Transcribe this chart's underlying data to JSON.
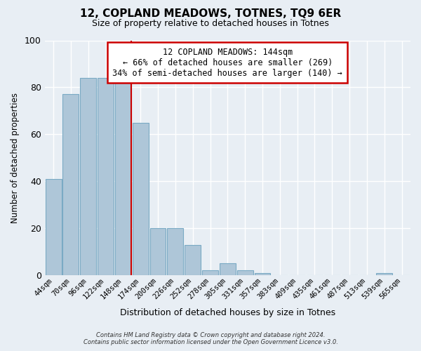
{
  "title": "12, COPLAND MEADOWS, TOTNES, TQ9 6ER",
  "subtitle": "Size of property relative to detached houses in Totnes",
  "xlabel": "Distribution of detached houses by size in Totnes",
  "ylabel": "Number of detached properties",
  "bar_labels": [
    "44sqm",
    "70sqm",
    "96sqm",
    "122sqm",
    "148sqm",
    "174sqm",
    "200sqm",
    "226sqm",
    "252sqm",
    "278sqm",
    "305sqm",
    "331sqm",
    "357sqm",
    "383sqm",
    "409sqm",
    "435sqm",
    "461sqm",
    "487sqm",
    "513sqm",
    "539sqm",
    "565sqm"
  ],
  "bar_values": [
    41,
    77,
    84,
    84,
    84,
    65,
    20,
    20,
    13,
    2,
    5,
    2,
    1,
    0,
    0,
    0,
    0,
    0,
    0,
    1,
    0
  ],
  "bar_color": "#aec6d8",
  "bar_edge_color": "#7aaac4",
  "vline_index": 4,
  "vline_color": "#cc0000",
  "annotation_title": "12 COPLAND MEADOWS: 144sqm",
  "annotation_line1": "← 66% of detached houses are smaller (269)",
  "annotation_line2": "34% of semi-detached houses are larger (140) →",
  "annotation_box_color": "#ffffff",
  "annotation_box_edge": "#cc0000",
  "ylim": [
    0,
    100
  ],
  "yticks": [
    0,
    20,
    40,
    60,
    80,
    100
  ],
  "background_color": "#e8eef4",
  "grid_color": "#ffffff",
  "footer_line1": "Contains HM Land Registry data © Crown copyright and database right 2024.",
  "footer_line2": "Contains public sector information licensed under the Open Government Licence v3.0."
}
